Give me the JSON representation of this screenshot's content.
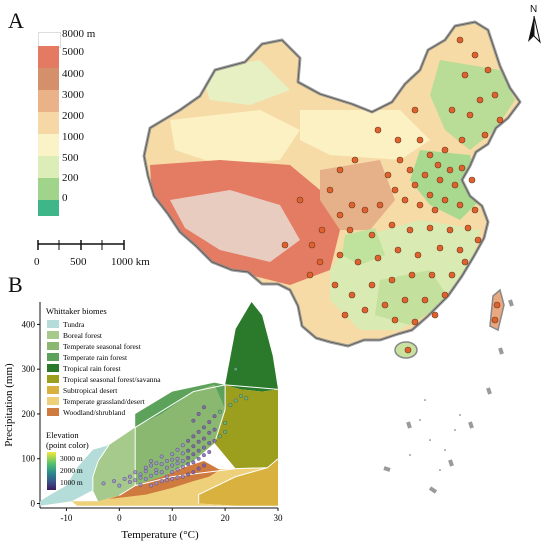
{
  "panel_a": {
    "letter": "A",
    "north_label": "N",
    "elevation_legend": [
      {
        "label": "8000 m",
        "color": "#ffffff"
      },
      {
        "label": "5000",
        "color": "#e57a62"
      },
      {
        "label": "4000",
        "color": "#d4906a"
      },
      {
        "label": "3000",
        "color": "#e9b287"
      },
      {
        "label": "2000",
        "color": "#f6d8a6"
      },
      {
        "label": "1000",
        "color": "#fbf3c8"
      },
      {
        "label": "500",
        "color": "#dcedb8"
      },
      {
        "label": "200",
        "color": "#9fd48a"
      },
      {
        "label": "0",
        "color": "#3fb58a"
      }
    ],
    "scale_bar": {
      "labels": [
        "0",
        "500",
        "1000 km"
      ]
    },
    "site_color": "#e0612e"
  },
  "panel_b": {
    "letter": "B",
    "chart_data": {
      "type": "scatter",
      "title": "",
      "xlabel": "Temperature (°C)",
      "ylabel": "Precipitation (mm)",
      "xlim": [
        -15,
        30
      ],
      "ylim": [
        -10,
        450
      ],
      "x_ticks": [
        -10,
        0,
        10,
        20,
        30
      ],
      "y_ticks": [
        0,
        100,
        200,
        300,
        400
      ],
      "legend_title": "Whittaker biomes",
      "biomes": [
        {
          "name": "Tundra",
          "color": "#b4dcd9"
        },
        {
          "name": "Boreal forest",
          "color": "#a6c98c"
        },
        {
          "name": "Temperate seasonal forest",
          "color": "#8bb870"
        },
        {
          "name": "Temperate rain forest",
          "color": "#5da25b"
        },
        {
          "name": "Tropical rain forest",
          "color": "#2b7a2b"
        },
        {
          "name": "Tropical seasonal forest/savanna",
          "color": "#9c9e1e"
        },
        {
          "name": "Subtropical desert",
          "color": "#d9b13e"
        },
        {
          "name": "Temperate grassland/desert",
          "color": "#efd07a"
        },
        {
          "name": "Woodland/shrubland",
          "color": "#cf7a3f"
        }
      ],
      "elevation_legend": {
        "title": "Elevation\n(point color)",
        "labels": [
          "3000 m",
          "2000 m",
          "1000 m"
        ],
        "colors": [
          "#f3e83b",
          "#57c16c",
          "#2a8b8b",
          "#3b4f8c",
          "#3c1a5b"
        ]
      },
      "points": [
        [
          -3,
          45
        ],
        [
          -1,
          50
        ],
        [
          0,
          40
        ],
        [
          1,
          55
        ],
        [
          2,
          48
        ],
        [
          2,
          60
        ],
        [
          3,
          52
        ],
        [
          3,
          70
        ],
        [
          4,
          65
        ],
        [
          4,
          58
        ],
        [
          5,
          72
        ],
        [
          5,
          80
        ],
        [
          5,
          55
        ],
        [
          6,
          85
        ],
        [
          6,
          62
        ],
        [
          6,
          95
        ],
        [
          7,
          75
        ],
        [
          7,
          68
        ],
        [
          7,
          90
        ],
        [
          8,
          88
        ],
        [
          8,
          70
        ],
        [
          8,
          105
        ],
        [
          9,
          95
        ],
        [
          9,
          80
        ],
        [
          9,
          60
        ],
        [
          10,
          110
        ],
        [
          10,
          98
        ],
        [
          10,
          85
        ],
        [
          10,
          70
        ],
        [
          11,
          120
        ],
        [
          11,
          100
        ],
        [
          11,
          90
        ],
        [
          11,
          76
        ],
        [
          12,
          130
        ],
        [
          12,
          112
        ],
        [
          12,
          95
        ],
        [
          12,
          82
        ],
        [
          13,
          140
        ],
        [
          13,
          118
        ],
        [
          13,
          102
        ],
        [
          13,
          88
        ],
        [
          14,
          150
        ],
        [
          14,
          128
        ],
        [
          14,
          110
        ],
        [
          14,
          92
        ],
        [
          15,
          160
        ],
        [
          15,
          138
        ],
        [
          15,
          118
        ],
        [
          15,
          100
        ],
        [
          16,
          170
        ],
        [
          16,
          145
        ],
        [
          16,
          125
        ],
        [
          16,
          108
        ],
        [
          17,
          182
        ],
        [
          17,
          158
        ],
        [
          17,
          135
        ],
        [
          18,
          195
        ],
        [
          18,
          165
        ],
        [
          19,
          205
        ],
        [
          20,
          180
        ],
        [
          21,
          220
        ],
        [
          22,
          230
        ],
        [
          23,
          240
        ],
        [
          24,
          235
        ],
        [
          12,
          60
        ],
        [
          13,
          65
        ],
        [
          14,
          70
        ],
        [
          15,
          78
        ],
        [
          16,
          85
        ],
        [
          8,
          50
        ],
        [
          9,
          52
        ],
        [
          10,
          55
        ],
        [
          11,
          58
        ],
        [
          6,
          40
        ],
        [
          7,
          45
        ],
        [
          4,
          42
        ],
        [
          18,
          140
        ],
        [
          19,
          150
        ],
        [
          20,
          160
        ],
        [
          17,
          115
        ],
        [
          15,
          200
        ],
        [
          16,
          215
        ],
        [
          14,
          185
        ],
        [
          22,
          300
        ]
      ]
    }
  }
}
